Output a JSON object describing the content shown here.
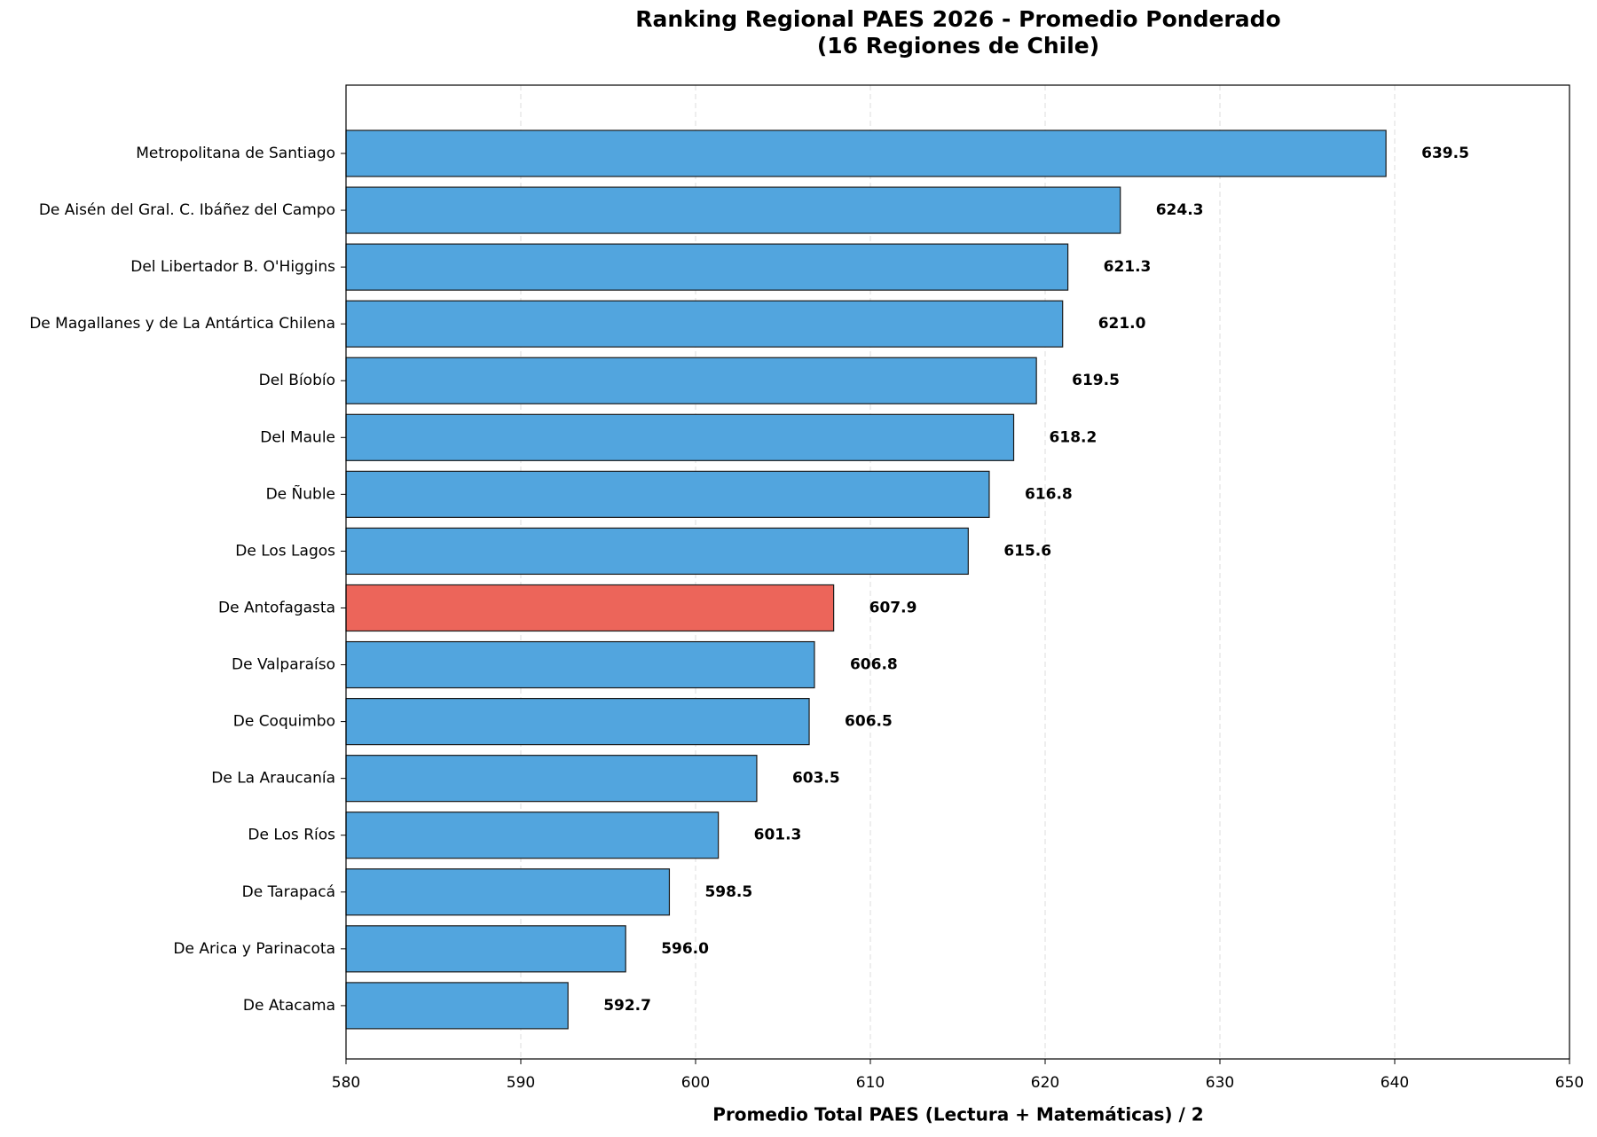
{
  "chart_data": {
    "type": "barh",
    "title": "Ranking Regional PAES 2026 - Promedio Ponderado",
    "subtitle": "(16 Regiones de Chile)",
    "x_label": "Promedio Total PAES (Lectura + Matemáticas) / 2",
    "categories": [
      "Metropolitana de Santiago",
      "De Aisén del Gral. C. Ibáñez del Campo",
      "Del Libertador B. O'Higgins",
      "De Magallanes y de La Antártica Chilena",
      "Del Bíobío",
      "Del Maule",
      "De Ñuble",
      "De Los Lagos",
      "De Antofagasta",
      "De Valparaíso",
      "De Coquimbo",
      "De La Araucanía",
      "De Los Ríos",
      "De Tarapacá",
      "De Arica y Parinacota",
      "De Atacama"
    ],
    "values": [
      639.5,
      624.3,
      621.3,
      621.0,
      619.5,
      618.2,
      616.8,
      615.6,
      607.9,
      606.8,
      606.5,
      603.5,
      601.3,
      598.5,
      596.0,
      592.7
    ],
    "value_labels": [
      "639.5",
      "624.3",
      "621.3",
      "621.0",
      "619.5",
      "618.2",
      "616.8",
      "615.6",
      "607.9",
      "606.8",
      "606.5",
      "603.5",
      "601.3",
      "598.5",
      "596.0",
      "592.7"
    ],
    "colors": [
      "#52a5de",
      "#52a5de",
      "#52a5de",
      "#52a5de",
      "#52a5de",
      "#52a5de",
      "#52a5de",
      "#52a5de",
      "#ec655a",
      "#52a5de",
      "#52a5de",
      "#52a5de",
      "#52a5de",
      "#52a5de",
      "#52a5de",
      "#52a5de"
    ],
    "xlim": [
      580,
      650
    ],
    "xticks": [
      580,
      590,
      600,
      610,
      620,
      630,
      640,
      650
    ],
    "grid": true
  }
}
